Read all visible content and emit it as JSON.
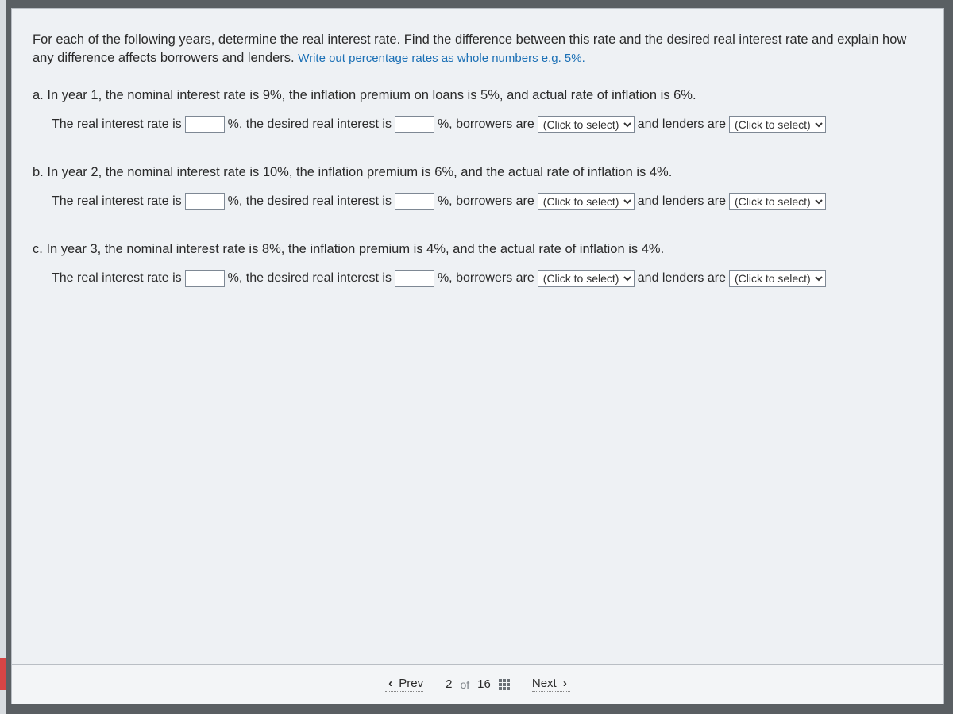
{
  "colors": {
    "page_bg": "#eef1f4",
    "outer_bg": "#5a5f63",
    "hint_text": "#1a6fb5",
    "body_text": "#2a2a2a",
    "border": "#b9bec4",
    "input_border": "#7e8894"
  },
  "instructions": {
    "main": "For each of the following years, determine the real interest rate. Find the difference between this rate and the desired real interest rate and explain how any difference affects borrowers and lenders.",
    "hint": "Write out percentage rates as whole numbers e.g. 5%."
  },
  "dropdown_placeholder": "(Click to select)",
  "parts": {
    "a": {
      "label": "a.",
      "prompt": "In year 1, the nominal interest rate is 9%, the inflation premium on loans is 5%, and actual rate of inflation is 6%."
    },
    "b": {
      "label": "b.",
      "prompt": "In year 2, the nominal interest rate is 10%, the inflation premium is 6%, and the actual rate of inflation is 4%."
    },
    "c": {
      "label": "c.",
      "prompt": "In year 3, the nominal interest rate is 8%, the inflation premium is 4%, and the actual rate of inflation is 4%."
    }
  },
  "answer_fragments": {
    "f1": "The real interest rate is",
    "f2": "%, the desired real interest is",
    "f3": "%, borrowers are",
    "f4": "and lenders are"
  },
  "pager": {
    "prev": "Prev",
    "next": "Next",
    "current": "2",
    "of": "of",
    "total": "16"
  }
}
